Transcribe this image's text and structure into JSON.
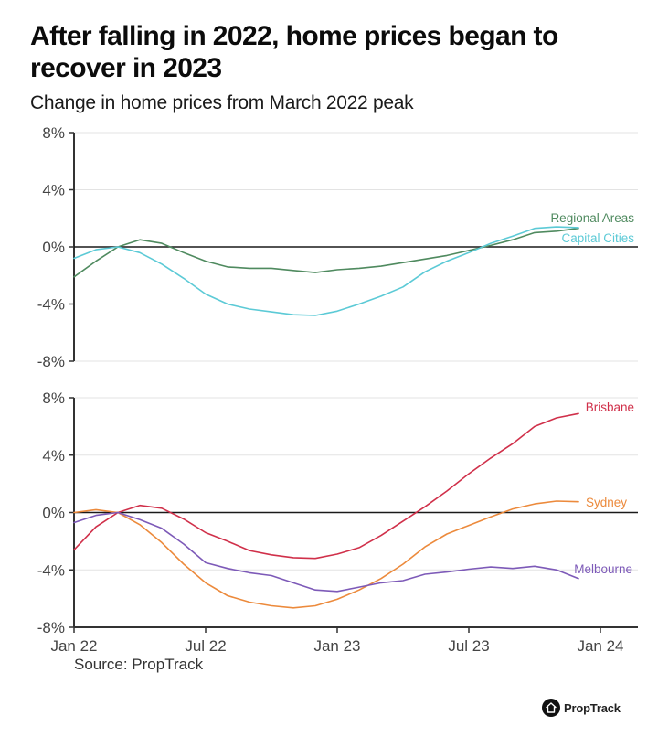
{
  "header": {
    "title": "After falling in 2022, home prices began to recover in 2023",
    "subtitle": "Change in home prices from March 2022 peak"
  },
  "footer": {
    "source": "Source: PropTrack",
    "logo_text": "PropTrack",
    "logo_icon": "house-icon"
  },
  "chart_data": [
    {
      "type": "line",
      "title": "Change in home prices from March 2022 peak",
      "panel": "top",
      "x": [
        "Jan 22",
        "Feb 22",
        "Mar 22",
        "Apr 22",
        "May 22",
        "Jun 22",
        "Jul 22",
        "Aug 22",
        "Sep 22",
        "Oct 22",
        "Nov 22",
        "Dec 22",
        "Jan 23",
        "Feb 23",
        "Mar 23",
        "Apr 23",
        "May 23",
        "Jun 23",
        "Jul 23",
        "Aug 23",
        "Sep 23",
        "Oct 23",
        "Nov 23",
        "Dec 23"
      ],
      "xticks": [
        "Jan 22",
        "Jul 22",
        "Jan 23",
        "Jul 23",
        "Jan 24"
      ],
      "yticks": [
        "8%",
        "4%",
        "0%",
        "-4%",
        "-8%"
      ],
      "ytick_values": [
        8,
        4,
        0,
        -4,
        -8
      ],
      "ylim": [
        -8,
        8
      ],
      "ylabel": "",
      "xlabel": "",
      "grid": true,
      "series": [
        {
          "name": "Regional Areas",
          "color": "#4f8a5f",
          "values": [
            -2.1,
            -1.0,
            0,
            0.5,
            0.25,
            -0.4,
            -1.0,
            -1.4,
            -1.5,
            -1.5,
            -1.65,
            -1.8,
            -1.6,
            -1.5,
            -1.35,
            -1.1,
            -0.85,
            -0.6,
            -0.25,
            0.1,
            0.5,
            1.0,
            1.1,
            1.3
          ]
        },
        {
          "name": "Capital Cities",
          "color": "#5ccad6",
          "values": [
            -0.8,
            -0.2,
            0,
            -0.4,
            -1.2,
            -2.2,
            -3.3,
            -4.0,
            -4.35,
            -4.55,
            -4.75,
            -4.8,
            -4.5,
            -4.0,
            -3.45,
            -2.8,
            -1.75,
            -1.0,
            -0.4,
            0.25,
            0.75,
            1.3,
            1.4,
            1.35
          ]
        }
      ]
    },
    {
      "type": "line",
      "panel": "bottom",
      "x": [
        "Jan 22",
        "Feb 22",
        "Mar 22",
        "Apr 22",
        "May 22",
        "Jun 22",
        "Jul 22",
        "Aug 22",
        "Sep 22",
        "Oct 22",
        "Nov 22",
        "Dec 22",
        "Jan 23",
        "Feb 23",
        "Mar 23",
        "Apr 23",
        "May 23",
        "Jun 23",
        "Jul 23",
        "Aug 23",
        "Sep 23",
        "Oct 23",
        "Nov 23",
        "Dec 23"
      ],
      "xticks": [
        "Jan 22",
        "Jul 22",
        "Jan 23",
        "Jul 23",
        "Jan 24"
      ],
      "yticks": [
        "8%",
        "4%",
        "0%",
        "-4%",
        "-8%"
      ],
      "ytick_values": [
        8,
        4,
        0,
        -4,
        -8
      ],
      "ylim": [
        -8,
        8
      ],
      "ylabel": "",
      "xlabel": "",
      "grid": true,
      "series": [
        {
          "name": "Brisbane",
          "color": "#d0304a",
          "values": [
            -2.6,
            -1.0,
            0,
            0.5,
            0.3,
            -0.45,
            -1.4,
            -2.0,
            -2.65,
            -2.95,
            -3.15,
            -3.2,
            -2.9,
            -2.45,
            -1.6,
            -0.6,
            0.4,
            1.5,
            2.7,
            3.8,
            4.8,
            6.0,
            6.6,
            6.9
          ]
        },
        {
          "name": "Sydney",
          "color": "#ec8a3c",
          "values": [
            0,
            0.2,
            0,
            -0.85,
            -2.1,
            -3.6,
            -4.9,
            -5.8,
            -6.25,
            -6.5,
            -6.65,
            -6.5,
            -6.05,
            -5.4,
            -4.6,
            -3.6,
            -2.4,
            -1.5,
            -0.9,
            -0.3,
            0.25,
            0.6,
            0.8,
            0.75
          ]
        },
        {
          "name": "Melbourne",
          "color": "#7d5ab8",
          "values": [
            -0.7,
            -0.2,
            0,
            -0.5,
            -1.1,
            -2.2,
            -3.5,
            -3.9,
            -4.2,
            -4.4,
            -4.9,
            -5.4,
            -5.5,
            -5.2,
            -4.9,
            -4.75,
            -4.3,
            -4.15,
            -3.95,
            -3.8,
            -3.9,
            -3.75,
            -4.0,
            -4.6
          ]
        }
      ]
    }
  ]
}
